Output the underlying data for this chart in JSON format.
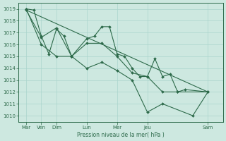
{
  "background_color": "#cde8e0",
  "plot_bg_color": "#d4eee8",
  "grid_color": "#aad4cc",
  "line_color": "#2d6a4a",
  "marker_color": "#2d6a4a",
  "xlabel": "Pression niveau de la mer( hPa )",
  "xlabel_color": "#2d6a4a",
  "tick_color": "#2d6a4a",
  "spine_color": "#2d6a4a",
  "ylim": [
    1009.5,
    1019.5
  ],
  "yticks": [
    1010,
    1011,
    1012,
    1013,
    1014,
    1015,
    1016,
    1017,
    1018,
    1019
  ],
  "day_names": [
    "Mar",
    "Ven",
    "Dim",
    "Lun",
    "Mer",
    "Jeu",
    "Sam"
  ],
  "day_pos": [
    0,
    1,
    2,
    4,
    6,
    8,
    12
  ],
  "xlim": [
    -0.5,
    13
  ],
  "series1_x": [
    0,
    0.5,
    1,
    1.5,
    2,
    2.5,
    3,
    4,
    4.5,
    5,
    5.5,
    6,
    6.5,
    7,
    7.5,
    8,
    8.5,
    9,
    9.5,
    10,
    10.5,
    12
  ],
  "series1_y": [
    1019.0,
    1018.9,
    1016.7,
    1015.2,
    1017.3,
    1016.7,
    1015.0,
    1016.5,
    1016.7,
    1017.5,
    1017.5,
    1015.2,
    1015.0,
    1014.0,
    1013.3,
    1013.3,
    1014.8,
    1013.3,
    1013.5,
    1012.0,
    1012.2,
    1012.0
  ],
  "series2_x": [
    0,
    1,
    2,
    3,
    4,
    5,
    6,
    7,
    8,
    9,
    10,
    12
  ],
  "series2_y": [
    1018.9,
    1016.6,
    1017.4,
    1015.0,
    1016.1,
    1016.1,
    1015.0,
    1013.6,
    1013.3,
    1012.0,
    1012.0,
    1012.0
  ],
  "series3_x": [
    0,
    1,
    2,
    3,
    4,
    5,
    6,
    7,
    8,
    9,
    11,
    12
  ],
  "series3_y": [
    1019.0,
    1016.0,
    1015.0,
    1015.0,
    1014.0,
    1014.5,
    1013.8,
    1013.0,
    1010.3,
    1011.0,
    1010.0,
    1012.0
  ],
  "trend_x": [
    0,
    12
  ],
  "trend_y": [
    1018.9,
    1012.0
  ]
}
